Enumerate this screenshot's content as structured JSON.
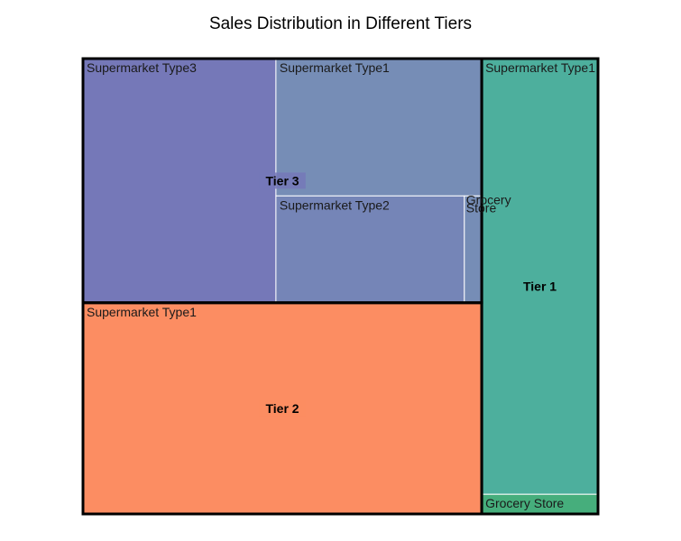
{
  "chart_data": {
    "type": "treemap",
    "title": "Sales Distribution in Different Tiers",
    "tiers": [
      {
        "name": "Tier 3",
        "color": "#7578b8",
        "children": [
          {
            "name": "Supermarket Type3",
            "value": 33.0,
            "color": "#7578b8"
          },
          {
            "name": "Supermarket Type1",
            "value": 19.8,
            "color": "#768db6"
          },
          {
            "name": "Supermarket Type2",
            "value": 14.1,
            "color": "#7585b7"
          },
          {
            "name": "Grocery Store",
            "value": 1.3,
            "color": "#768db6"
          }
        ]
      },
      {
        "name": "Tier 2",
        "color": "#fc8d62",
        "children": [
          {
            "name": "Supermarket Type1",
            "value": 59.0,
            "color": "#fc8d62"
          }
        ]
      },
      {
        "name": "Tier 1",
        "color": "#4daf9d",
        "children": [
          {
            "name": "Supermarket Type1",
            "value": 35.5,
            "color": "#4daf9d"
          },
          {
            "name": "Grocery Store",
            "value": 1.6,
            "color": "#46ae7c"
          }
        ]
      }
    ]
  }
}
